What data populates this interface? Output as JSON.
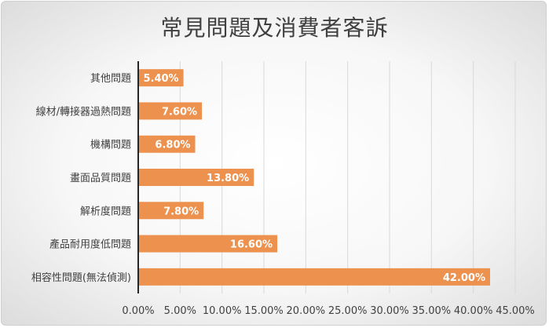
{
  "chart_data": {
    "type": "bar",
    "orientation": "horizontal",
    "title": "常見問題及消費者客訴",
    "categories": [
      "其他問題",
      "線材/轉接器過熱問題",
      "機構問題",
      "畫面品質問題",
      "解析度問題",
      "產品耐用度低問題",
      "相容性問題(無法偵測)"
    ],
    "values": [
      5.4,
      7.6,
      6.8,
      13.8,
      7.8,
      16.6,
      42.0
    ],
    "value_labels": [
      "5.40%",
      "7.60%",
      "6.80%",
      "13.80%",
      "7.80%",
      "16.60%",
      "42.00%"
    ],
    "x_ticks": [
      0,
      5,
      10,
      15,
      20,
      25,
      30,
      35,
      40,
      45
    ],
    "x_tick_labels": [
      "0.00%",
      "5.00%",
      "10.00%",
      "15.00%",
      "20.00%",
      "25.00%",
      "30.00%",
      "35.00%",
      "40.00%",
      "45.00%"
    ],
    "xlim": [
      0,
      45
    ],
    "xlabel": "",
    "ylabel": "",
    "grid": true,
    "legend": "none",
    "colors": {
      "bar": "#ED914E",
      "bar_label": "#FFFFFF",
      "grid": "#D9D9D9",
      "axis": "#262626",
      "text": "#404040"
    }
  }
}
